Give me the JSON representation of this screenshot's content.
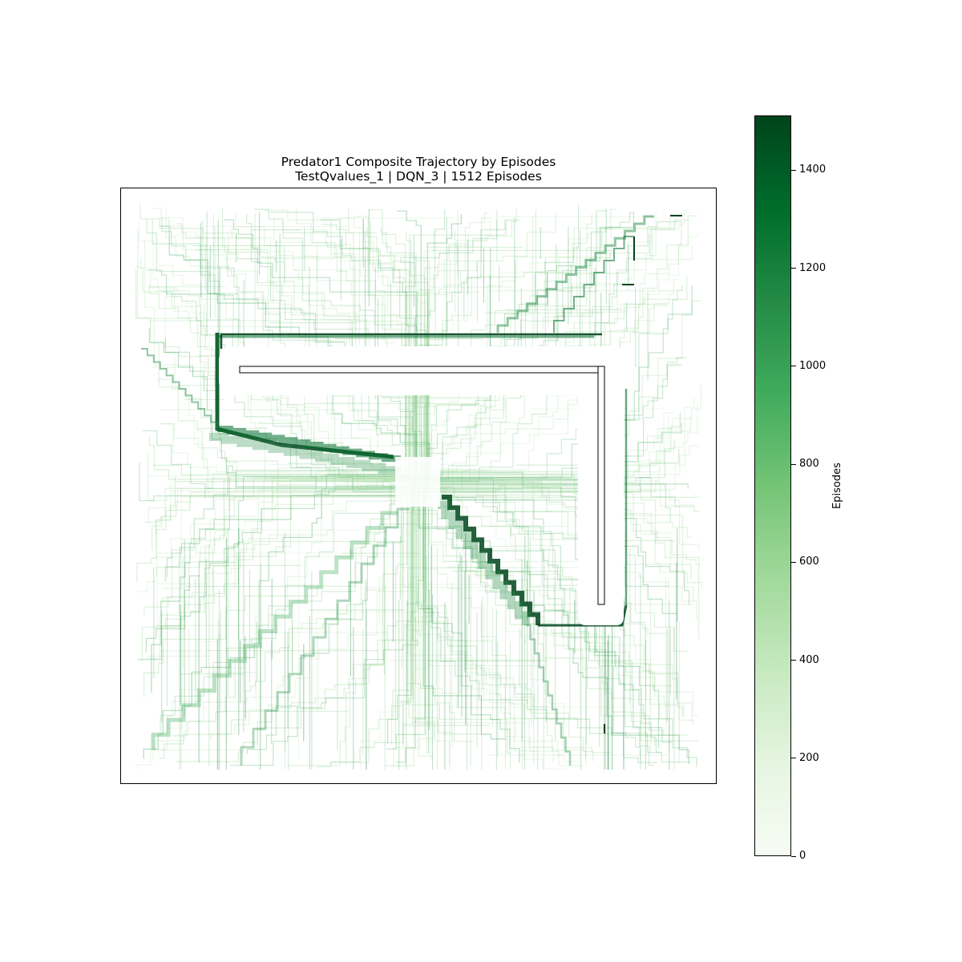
{
  "chart_data": {
    "type": "heatmap",
    "title": "Predator1 Composite Trajectory by Episodes",
    "subtitle": "TestQvalues_1 | DQN_3 | 1512 Episodes",
    "xlabel": "",
    "ylabel": "",
    "axes_ticks_visible": false,
    "colormap": "Greens",
    "colormap_stops": [
      "#f7fcf5",
      "#e5f5e0",
      "#c7e9c0",
      "#a1d99b",
      "#74c476",
      "#41ab5d",
      "#238b45",
      "#006d2c",
      "#00441b"
    ],
    "colorbar": {
      "label": "Episodes",
      "range": [
        0,
        1512
      ],
      "ticks": [
        0,
        200,
        400,
        600,
        800,
        1000,
        1200,
        1400
      ],
      "tick_labels": [
        "0",
        "200",
        "400",
        "600",
        "800",
        "1000",
        "1200",
        "1400"
      ]
    },
    "total_episodes": 1512,
    "obstacle": "L-shaped wall (horizontal arm along top, vertical arm down the right side)",
    "dominant_paths": [
      {
        "description": "around top-left corner of wall then diagonally toward center",
        "max_episode": 1400
      },
      {
        "description": "from center diagonally down-right to bottom of vertical arm",
        "max_episode": 1400
      },
      {
        "description": "from upper-right corner diagonally toward top of wall",
        "max_episode": 1300
      }
    ]
  }
}
